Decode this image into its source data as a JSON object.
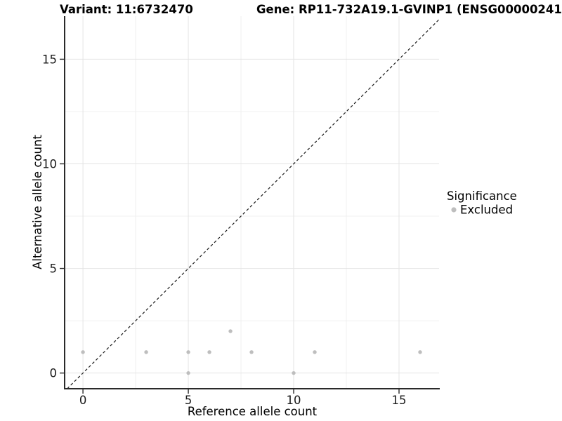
{
  "header": {
    "variant_title": "Variant: 11:6732470",
    "gene_title": "Gene: RP11-732A19.1-GVINP1 (ENSG00000241"
  },
  "legend": {
    "title": "Significance",
    "items": [
      {
        "label": "Excluded",
        "color": "#bebebe"
      }
    ]
  },
  "chart_data": {
    "type": "scatter",
    "title": "Variant: 11:6732470",
    "subtitle": "Gene: RP11-732A19.1-GVINP1 (ENSG00000241",
    "xlabel": "Reference allele count",
    "ylabel": "Alternative allele count",
    "xlim": [
      -0.87,
      16.9
    ],
    "ylim": [
      -0.75,
      17.06
    ],
    "x_major_ticks": [
      0,
      5,
      10,
      15
    ],
    "x_minor_ticks": [
      2.5,
      7.5,
      12.5
    ],
    "y_major_ticks": [
      0,
      5,
      10,
      15
    ],
    "y_minor_ticks": [
      2.5,
      7.5,
      12.5
    ],
    "grid": true,
    "legend_position": "right",
    "identity_line": {
      "type": "y=x",
      "style": "dashed",
      "color": "#1a1a1a"
    },
    "series": [
      {
        "name": "Excluded",
        "color": "#bebebe",
        "points": [
          [
            0,
            1
          ],
          [
            3,
            1
          ],
          [
            5,
            0
          ],
          [
            5,
            1
          ],
          [
            6,
            1
          ],
          [
            7,
            2
          ],
          [
            8,
            1
          ],
          [
            10,
            0
          ],
          [
            11,
            1
          ],
          [
            16,
            1
          ]
        ]
      }
    ]
  },
  "colors": {
    "background": "#ffffff",
    "grid_major": "#e4e4e4",
    "grid_minor": "#f0f0f0",
    "axis_line": "#2a2a2a",
    "tick": "#2a2a2a",
    "point": "#bebebe"
  }
}
